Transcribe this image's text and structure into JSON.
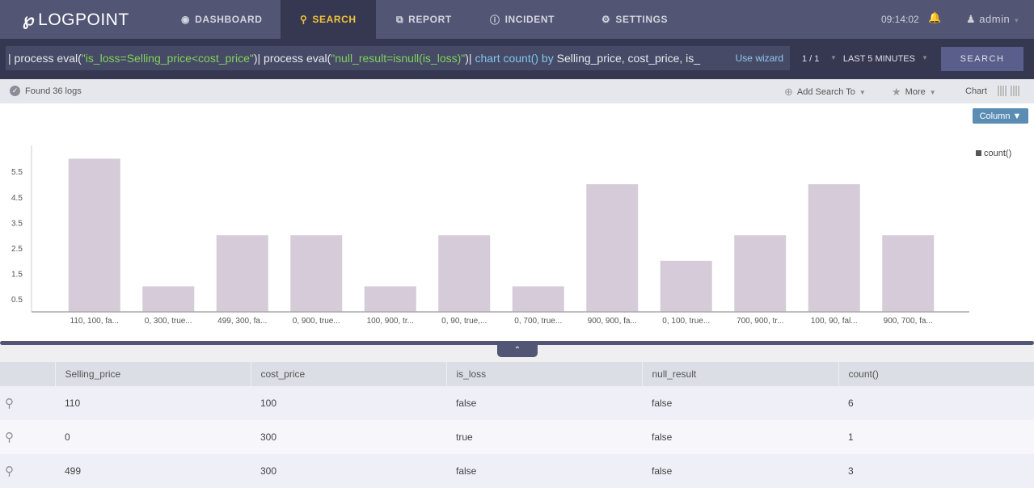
{
  "nav": {
    "logo": "LOGPOINT",
    "items": [
      {
        "label": "DASHBOARD",
        "icon": "dashboard-icon",
        "active": false
      },
      {
        "label": "SEARCH",
        "icon": "search-icon",
        "active": true
      },
      {
        "label": "REPORT",
        "icon": "report-icon",
        "active": false
      },
      {
        "label": "INCIDENT",
        "icon": "info-icon",
        "active": false
      },
      {
        "label": "SETTINGS",
        "icon": "gear-icon",
        "active": false
      }
    ],
    "clock": "09:14:02",
    "user": "admin"
  },
  "search": {
    "query_parts": {
      "p1": "| process eval(",
      "p2": "\"is_loss=Selling_price<cost_price\"",
      "p3": ")| process eval(",
      "p4": "\"null_result=isnull(is_loss)\"",
      "p5": ")| ",
      "p6": "chart count() by",
      "p7": " Selling_price, cost_price, is_"
    },
    "wizard": "Use wizard",
    "pager": "1 / 1",
    "time_range": "LAST 5 MINUTES",
    "button": "SEARCH"
  },
  "status": {
    "found": "Found 36 logs",
    "add_search_to": "Add Search To",
    "more": "More",
    "chart": "Chart"
  },
  "chart_type_button": "Column",
  "chart_data": {
    "type": "bar",
    "categories": [
      "110, 100, fa...",
      "0, 300, true...",
      "499, 300, fa...",
      "0, 900, true...",
      "100, 900, tr...",
      "0, 90, true,...",
      "0, 700, true...",
      "900, 900, fa...",
      "0, 100, true...",
      "700, 900, tr...",
      "100, 90, fal...",
      "900, 700, fa..."
    ],
    "series": [
      {
        "name": "count()",
        "values": [
          6,
          1,
          3,
          3,
          1,
          3,
          1,
          5,
          2,
          3,
          5,
          3
        ]
      }
    ],
    "yticks": [
      "0.5",
      "1.5",
      "2.5",
      "3.5",
      "4.5",
      "5.5"
    ],
    "ylim": [
      0,
      6.3
    ],
    "legend": "top-right",
    "color": "#d5cbd9"
  },
  "table": {
    "headers": [
      "Selling_price",
      "cost_price",
      "is_loss",
      "null_result",
      "count()"
    ],
    "rows": [
      [
        "110",
        "100",
        "false",
        "false",
        "6"
      ],
      [
        "0",
        "300",
        "true",
        "false",
        "1"
      ],
      [
        "499",
        "300",
        "false",
        "false",
        "3"
      ]
    ]
  }
}
